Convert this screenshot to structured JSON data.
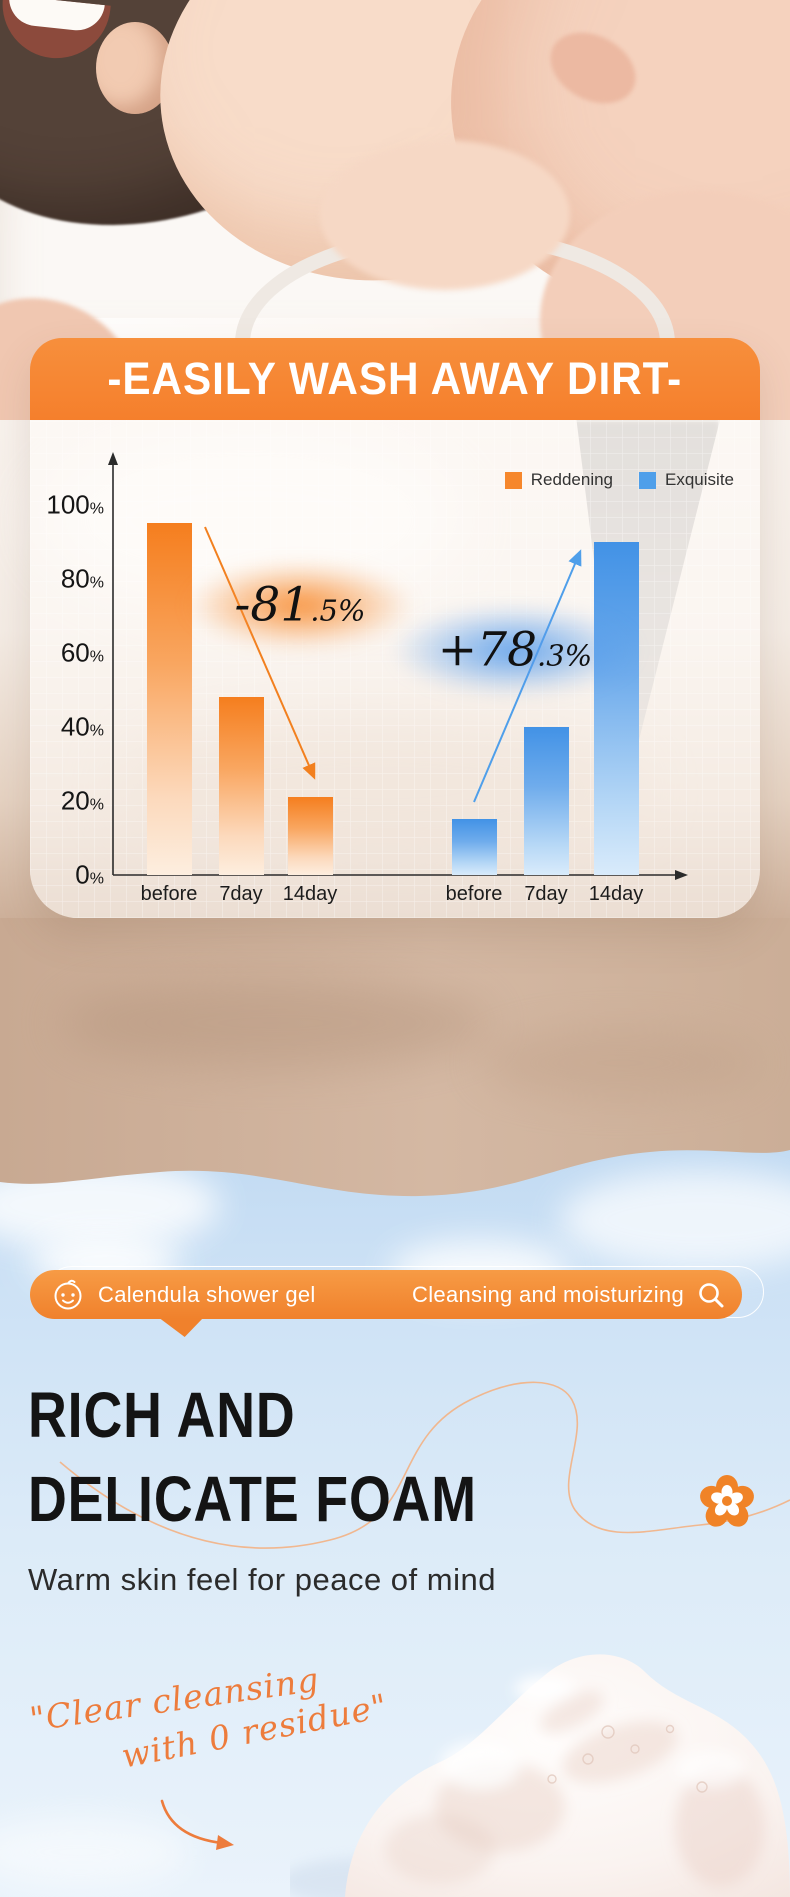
{
  "hero_banner": {
    "title": "-EASILY WASH AWAY DIRT-"
  },
  "chart": {
    "legend": [
      {
        "label": "Reddening",
        "color": "#F6872C"
      },
      {
        "label": "Exquisite",
        "color": "#4F9FEA"
      }
    ],
    "annotations": [
      {
        "main": "-81",
        "small": ".5%"
      },
      {
        "main": "+78",
        "small": ".3%"
      }
    ]
  },
  "chart_data": {
    "type": "bar",
    "title": "-EASILY WASH AWAY DIRT-",
    "categories": [
      "before",
      "7day",
      "14day"
    ],
    "series": [
      {
        "name": "Reddening",
        "color": "#F6872C",
        "values": [
          95,
          48,
          21
        ],
        "change_annotation": "-81.5%"
      },
      {
        "name": "Exquisite",
        "color": "#4F9FEA",
        "values": [
          15,
          40,
          90
        ],
        "change_annotation": "+78.3%"
      }
    ],
    "xlabel": "",
    "ylabel": "",
    "y_ticks": [
      "100%",
      "80%",
      "60%",
      "40%",
      "20%",
      "0%"
    ],
    "ylim": [
      0,
      100
    ],
    "grid": true,
    "legend_position": "top-right"
  },
  "search_bar": {
    "product_label": "Calendula shower gel",
    "tagline": "Cleansing and moisturizing",
    "icons": [
      "baby-face-icon",
      "search-icon"
    ]
  },
  "foam_section": {
    "heading_line1": "RICH AND",
    "heading_line2": "DELICATE FOAM",
    "subheading": "Warm skin feel for peace of mind",
    "script_line1": "\"Clear cleansing",
    "script_line2": "with 0 residue\"",
    "icons": [
      "flower-icon",
      "curved-arrow-icon"
    ]
  },
  "colors": {
    "accent_orange": "#F58634",
    "accent_blue": "#4F9FEA",
    "sky_blue": "#CCE1F5",
    "script_orange": "#ED7C3C",
    "bedding_tan": "#CBAE97"
  }
}
